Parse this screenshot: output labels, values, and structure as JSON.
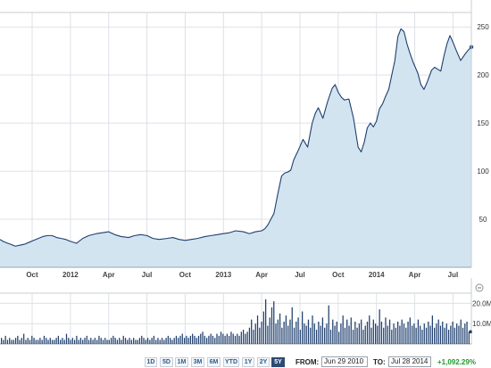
{
  "chart_data": {
    "type": "area",
    "title": "",
    "price": {
      "ylim": [
        0,
        265
      ],
      "y_ticks": [
        50,
        100,
        150,
        200,
        250
      ],
      "x_tick_labels": [
        "Oct",
        "2012",
        "Apr",
        "Jul",
        "Oct",
        "2013",
        "Apr",
        "Jul",
        "Oct",
        "2014",
        "Apr",
        "Jul"
      ],
      "x_tick_positions": [
        2011.75,
        2012.0,
        2012.25,
        2012.5,
        2012.75,
        2013.0,
        2013.25,
        2013.5,
        2013.75,
        2014.0,
        2014.25,
        2014.5
      ],
      "x_range": [
        2011.54,
        2014.62
      ],
      "line_color": "#1f3f6e",
      "fill_color": "#d3e4f1",
      "series": [
        {
          "x": [
            2011.54,
            2011.56,
            2011.59,
            2011.61,
            2011.64,
            2011.67,
            2011.7,
            2011.73,
            2011.76,
            2011.79,
            2011.82,
            2011.85,
            2011.88,
            2011.91,
            2011.94,
            2011.97,
            2012.0,
            2012.04,
            2012.08,
            2012.12,
            2012.17,
            2012.21,
            2012.25,
            2012.29,
            2012.33,
            2012.38,
            2012.42,
            2012.46,
            2012.5,
            2012.54,
            2012.58,
            2012.63,
            2012.67,
            2012.71,
            2012.75,
            2012.79,
            2012.83,
            2012.88,
            2012.92,
            2012.96,
            2013.0,
            2013.04,
            2013.08,
            2013.13,
            2013.17,
            2013.21,
            2013.25,
            2013.27,
            2013.29,
            2013.31,
            2013.33,
            2013.36,
            2013.38,
            2013.4,
            2013.42,
            2013.44,
            2013.46,
            2013.49,
            2013.52,
            2013.55,
            2013.58,
            2013.6,
            2013.62,
            2013.65,
            2013.68,
            2013.71,
            2013.73,
            2013.75,
            2013.77,
            2013.79,
            2013.82,
            2013.85,
            2013.88,
            2013.9,
            2013.92,
            2013.94,
            2013.96,
            2013.98,
            2014.0,
            2014.02,
            2014.04,
            2014.06,
            2014.08,
            2014.1,
            2014.12,
            2014.14,
            2014.16,
            2014.18,
            2014.2,
            2014.22,
            2014.24,
            2014.27,
            2014.29,
            2014.31,
            2014.33,
            2014.36,
            2014.38,
            2014.4,
            2014.42,
            2014.44,
            2014.46,
            2014.48,
            2014.5,
            2014.52,
            2014.55,
            2014.58,
            2014.6,
            2014.62
          ],
          "y": [
            29,
            27,
            25,
            24,
            22,
            23,
            24,
            26,
            28,
            30,
            32,
            33,
            33,
            31,
            30,
            29,
            27,
            25,
            30,
            33,
            35,
            36,
            37,
            34,
            32,
            31,
            33,
            34,
            33,
            30,
            29,
            30,
            31,
            29,
            28,
            29,
            30,
            32,
            33,
            34,
            35,
            36,
            38,
            37,
            35,
            37,
            38,
            40,
            44,
            50,
            56,
            80,
            95,
            98,
            99,
            101,
            112,
            122,
            133,
            125,
            150,
            160,
            166,
            155,
            172,
            186,
            190,
            182,
            177,
            174,
            175,
            155,
            125,
            120,
            130,
            145,
            150,
            146,
            152,
            165,
            170,
            178,
            185,
            200,
            215,
            240,
            248,
            245,
            232,
            222,
            213,
            202,
            190,
            185,
            192,
            205,
            208,
            206,
            204,
            219,
            232,
            241,
            234,
            226,
            215,
            222,
            226,
            229
          ]
        }
      ]
    },
    "volume": {
      "ylim": [
        0,
        25
      ],
      "y_ticks_labels": [
        "10.0M",
        "20.0M"
      ],
      "y_ticks": [
        10,
        20
      ],
      "bar_color": "#1f3f6e",
      "series_millions": [
        3,
        2,
        4,
        2,
        3,
        2,
        2,
        3,
        4,
        2,
        3,
        5,
        2,
        3,
        2,
        4,
        3,
        2,
        2,
        3,
        2,
        4,
        3,
        2,
        3,
        2,
        2,
        3,
        4,
        2,
        3,
        2,
        5,
        3,
        2,
        3,
        2,
        4,
        2,
        3,
        2,
        3,
        4,
        2,
        3,
        2,
        3,
        2,
        4,
        3,
        2,
        3,
        2,
        2,
        3,
        4,
        3,
        2,
        3,
        2,
        4,
        3,
        2,
        3,
        2,
        3,
        2,
        2,
        3,
        4,
        3,
        2,
        3,
        2,
        3,
        4,
        2,
        3,
        2,
        3,
        2,
        3,
        4,
        3,
        2,
        3,
        4,
        3,
        4,
        5,
        3,
        4,
        3,
        4,
        5,
        4,
        3,
        4,
        5,
        6,
        4,
        3,
        4,
        5,
        4,
        3,
        5,
        4,
        6,
        5,
        4,
        5,
        4,
        6,
        5,
        4,
        5,
        4,
        6,
        7,
        5,
        6,
        8,
        12,
        7,
        10,
        14,
        8,
        11,
        16,
        22,
        9,
        13,
        18,
        21,
        10,
        12,
        15,
        8,
        11,
        14,
        9,
        12,
        18,
        8,
        11,
        13,
        7,
        16,
        10,
        9,
        12,
        8,
        14,
        10,
        7,
        11,
        9,
        13,
        8,
        10,
        19,
        7,
        12,
        9,
        11,
        6,
        10,
        14,
        8,
        12,
        9,
        13,
        7,
        11,
        8,
        10,
        12,
        7,
        9,
        11,
        14,
        8,
        12,
        10,
        9,
        17,
        11,
        8,
        13,
        9,
        12,
        7,
        10,
        8,
        11,
        9,
        12,
        10,
        8,
        11,
        13,
        9,
        10,
        8,
        12,
        9,
        7,
        10,
        8,
        11,
        9,
        14,
        8,
        10,
        12,
        9,
        11,
        8,
        10,
        7,
        9,
        11,
        8,
        10,
        9,
        12,
        8,
        10,
        11,
        6
      ]
    }
  },
  "controls": {
    "ranges": [
      "1D",
      "5D",
      "1M",
      "3M",
      "6M",
      "YTD",
      "1Y",
      "2Y",
      "5Y"
    ],
    "active_range": "5Y",
    "from_label": "FROM:",
    "from_value": "Jun 29 2010",
    "to_label": "TO:",
    "to_value": "Jul 28 2014",
    "change": "+1,092.29%",
    "change_color": "#1e9a2a"
  }
}
